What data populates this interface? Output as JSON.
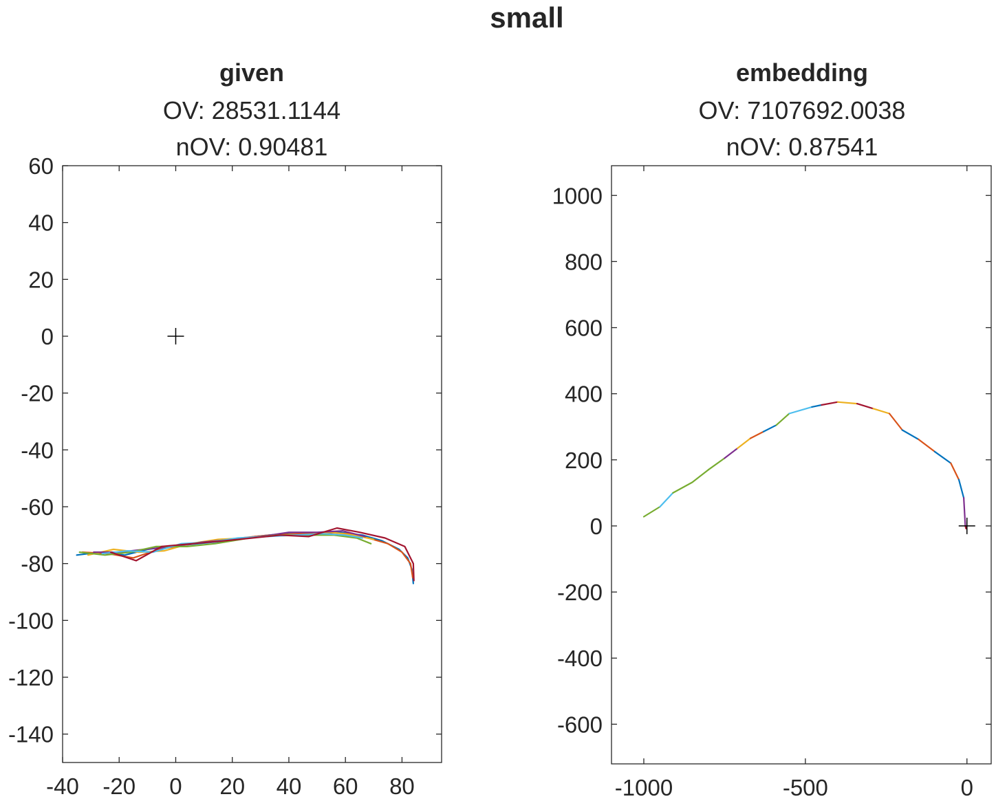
{
  "figure_title": "small",
  "chart_data": [
    {
      "type": "line",
      "title": "given",
      "subtitle_lines": [
        "OV: 28531.1144",
        "nOV: 0.90481"
      ],
      "xlabel": "",
      "ylabel": "",
      "xlim": [
        -40,
        94
      ],
      "ylim": [
        -150,
        60
      ],
      "xticks": [
        -40,
        -20,
        0,
        20,
        40,
        60,
        80
      ],
      "yticks": [
        -140,
        -120,
        -100,
        -80,
        -60,
        -40,
        -20,
        0,
        20,
        40,
        60
      ],
      "grid": false,
      "marker": {
        "symbol": "+",
        "x": 0,
        "y": 0
      },
      "series": [
        {
          "color": "#0072BD",
          "points": [
            [
              -35,
              -77
            ],
            [
              -27,
              -76
            ],
            [
              -18,
              -77
            ],
            [
              -10,
              -75
            ],
            [
              -2,
              -74
            ],
            [
              8,
              -73
            ],
            [
              18,
              -72
            ],
            [
              28,
              -70.5
            ],
            [
              38,
              -69.5
            ],
            [
              48,
              -69.5
            ],
            [
              58,
              -69
            ],
            [
              66,
              -70
            ],
            [
              73,
              -72
            ],
            [
              79,
              -75
            ],
            [
              82,
              -78
            ],
            [
              83.5,
              -82
            ],
            [
              84,
              -87
            ]
          ]
        },
        {
          "color": "#D95319",
          "points": [
            [
              -33,
              -76
            ],
            [
              -24,
              -76.5
            ],
            [
              -15,
              -78
            ],
            [
              -6,
              -75
            ],
            [
              3,
              -73.5
            ],
            [
              13,
              -72
            ],
            [
              23,
              -71
            ],
            [
              33,
              -70
            ],
            [
              43,
              -69.5
            ],
            [
              53,
              -69
            ],
            [
              61,
              -69.5
            ],
            [
              68,
              -71
            ],
            [
              75,
              -73
            ],
            [
              80,
              -76
            ],
            [
              83,
              -80
            ],
            [
              83.8,
              -85
            ]
          ]
        },
        {
          "color": "#EDB120",
          "points": [
            [
              -31,
              -77
            ],
            [
              -22,
              -75
            ],
            [
              -13,
              -76
            ],
            [
              -4,
              -75.5
            ],
            [
              5,
              -73
            ],
            [
              15,
              -71.5
            ],
            [
              25,
              -71
            ],
            [
              35,
              -70
            ],
            [
              45,
              -70
            ],
            [
              55,
              -69
            ],
            [
              63,
              -70
            ],
            [
              70,
              -71.5
            ]
          ]
        },
        {
          "color": "#7E2F8E",
          "points": [
            [
              -29,
              -76
            ],
            [
              -20,
              -76
            ],
            [
              -11,
              -75
            ],
            [
              -1,
              -74
            ],
            [
              9,
              -72.5
            ],
            [
              20,
              -71.5
            ],
            [
              30,
              -70.5
            ],
            [
              40,
              -69
            ],
            [
              50,
              -69
            ],
            [
              59,
              -68.5
            ],
            [
              67,
              -70.5
            ]
          ]
        },
        {
          "color": "#77AC30",
          "points": [
            [
              -34,
              -76
            ],
            [
              -25,
              -77
            ],
            [
              -16,
              -76
            ],
            [
              -7,
              -74
            ],
            [
              4,
              -74
            ],
            [
              14,
              -73
            ],
            [
              26,
              -71
            ],
            [
              36,
              -70
            ],
            [
              46,
              -70
            ],
            [
              56,
              -70
            ],
            [
              64,
              -71
            ],
            [
              69,
              -73
            ]
          ]
        },
        {
          "color": "#4DBEEE",
          "points": [
            [
              -26,
              -76.5
            ],
            [
              -17,
              -75.5
            ],
            [
              -8,
              -76
            ],
            [
              2,
              -73
            ],
            [
              12,
              -72.5
            ],
            [
              22,
              -71
            ],
            [
              32,
              -70.5
            ],
            [
              42,
              -70
            ],
            [
              52,
              -69.5
            ],
            [
              60,
              -70
            ],
            [
              66,
              -71
            ]
          ]
        },
        {
          "color": "#A2142F",
          "points": [
            [
              -23,
              -76
            ],
            [
              -14,
              -79
            ],
            [
              -5,
              -74
            ],
            [
              6,
              -73
            ],
            [
              17,
              -72
            ],
            [
              27,
              -71
            ],
            [
              37,
              -70
            ],
            [
              47,
              -70.5
            ],
            [
              57,
              -67.5
            ],
            [
              65,
              -69
            ],
            [
              74,
              -71
            ],
            [
              81,
              -74
            ],
            [
              84,
              -80
            ],
            [
              84.2,
              -86
            ]
          ]
        }
      ]
    },
    {
      "type": "line",
      "title": "embedding",
      "subtitle_lines": [
        "OV: 7107692.0038",
        "nOV: 0.87541"
      ],
      "xlabel": "",
      "ylabel": "",
      "xlim": [
        -1100,
        75
      ],
      "ylim": [
        -720,
        1090
      ],
      "xticks": [
        -1000,
        -500,
        0
      ],
      "yticks": [
        -600,
        -400,
        -200,
        0,
        200,
        400,
        600,
        800,
        1000
      ],
      "grid": false,
      "marker": {
        "symbol": "+",
        "x": 0,
        "y": 0
      },
      "series": [
        {
          "color": "#77AC30",
          "points": [
            [
              -1000,
              28
            ],
            [
              -950,
              58
            ]
          ]
        },
        {
          "color": "#4DBEEE",
          "points": [
            [
              -950,
              58
            ],
            [
              -910,
              100
            ]
          ]
        },
        {
          "color": "#77AC30",
          "points": [
            [
              -910,
              100
            ],
            [
              -850,
              132
            ],
            [
              -800,
              170
            ]
          ]
        },
        {
          "color": "#77AC30",
          "points": [
            [
              -800,
              170
            ],
            [
              -750,
              205
            ]
          ]
        },
        {
          "color": "#7E2F8E",
          "points": [
            [
              -750,
              205
            ],
            [
              -710,
              235
            ]
          ]
        },
        {
          "color": "#EDB120",
          "points": [
            [
              -710,
              235
            ],
            [
              -670,
              265
            ]
          ]
        },
        {
          "color": "#D95319",
          "points": [
            [
              -670,
              265
            ],
            [
              -630,
              285
            ]
          ]
        },
        {
          "color": "#0072BD",
          "points": [
            [
              -630,
              285
            ],
            [
              -590,
              305
            ]
          ]
        },
        {
          "color": "#77AC30",
          "points": [
            [
              -590,
              305
            ],
            [
              -550,
              340
            ]
          ]
        },
        {
          "color": "#4DBEEE",
          "points": [
            [
              -550,
              340
            ],
            [
              -480,
              360
            ]
          ]
        },
        {
          "color": "#0072BD",
          "points": [
            [
              -480,
              360
            ],
            [
              -450,
              366
            ]
          ]
        },
        {
          "color": "#A2142F",
          "points": [
            [
              -450,
              366
            ],
            [
              -400,
              375
            ]
          ]
        },
        {
          "color": "#EDB120",
          "points": [
            [
              -400,
              375
            ],
            [
              -340,
              370
            ]
          ]
        },
        {
          "color": "#A2142F",
          "points": [
            [
              -340,
              370
            ],
            [
              -290,
              355
            ]
          ]
        },
        {
          "color": "#EDB120",
          "points": [
            [
              -290,
              355
            ],
            [
              -240,
              340
            ]
          ]
        },
        {
          "color": "#D95319",
          "points": [
            [
              -240,
              340
            ],
            [
              -200,
              290
            ]
          ]
        },
        {
          "color": "#0072BD",
          "points": [
            [
              -200,
              290
            ],
            [
              -150,
              262
            ]
          ]
        },
        {
          "color": "#D95319",
          "points": [
            [
              -150,
              262
            ],
            [
              -100,
              225
            ]
          ]
        },
        {
          "color": "#0072BD",
          "points": [
            [
              -100,
              225
            ],
            [
              -50,
              190
            ]
          ]
        },
        {
          "color": "#D95319",
          "points": [
            [
              -50,
              190
            ],
            [
              -25,
              140
            ]
          ]
        },
        {
          "color": "#0072BD",
          "points": [
            [
              -25,
              140
            ],
            [
              -10,
              85
            ]
          ]
        },
        {
          "color": "#7E2F8E",
          "points": [
            [
              -10,
              85
            ],
            [
              -5,
              0
            ]
          ]
        },
        {
          "color": "#A2142F",
          "points": [
            [
              -5,
              0
            ],
            [
              -3,
              -8
            ]
          ]
        }
      ]
    }
  ]
}
